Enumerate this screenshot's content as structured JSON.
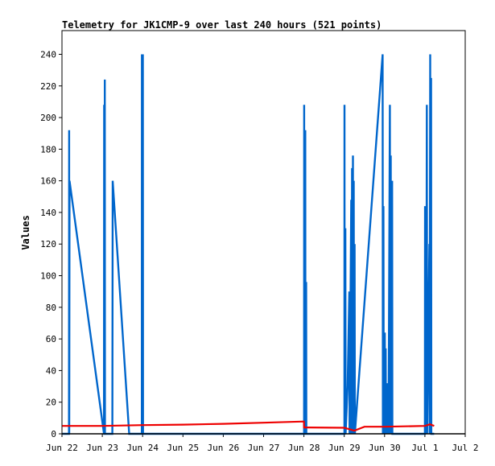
{
  "chart_data": {
    "type": "line",
    "title": "Telemetry for JK1CMP-9 over last 240 hours (521 points)",
    "ylabel": "Values",
    "xlabel": "",
    "ylim": [
      0,
      255
    ],
    "x_range": [
      "2024-06-22 00:00",
      "2024-07-02 00:00"
    ],
    "x_ticks": [
      "Jun 22",
      "Jun 23",
      "Jun 24",
      "Jun 25",
      "Jun 26",
      "Jun 27",
      "Jun 28",
      "Jun 29",
      "Jun 30",
      "Jul 1",
      "Jul 2"
    ],
    "y_ticks": [
      0,
      20,
      40,
      60,
      80,
      100,
      120,
      140,
      160,
      180,
      200,
      220,
      240
    ],
    "grid": false,
    "legend": "none",
    "series": [
      {
        "color": "#0066cc",
        "points": [
          [
            "2024-06-22 00:20",
            0
          ],
          [
            "2024-06-22 04:10",
            0
          ],
          [
            "2024-06-22 04:15",
            192
          ],
          [
            "2024-06-22 04:20",
            0
          ],
          [
            "2024-06-22 04:30",
            160
          ],
          [
            "2024-06-23 01:00",
            0
          ],
          [
            "2024-06-23 01:05",
            208
          ],
          [
            "2024-06-23 01:10",
            0
          ],
          [
            "2024-06-23 01:25",
            0
          ],
          [
            "2024-06-23 01:30",
            224
          ],
          [
            "2024-06-23 01:35",
            0
          ],
          [
            "2024-06-23 06:00",
            0
          ],
          [
            "2024-06-23 06:10",
            160
          ],
          [
            "2024-06-23 16:00",
            0
          ],
          [
            "2024-06-23 23:30",
            0
          ],
          [
            "2024-06-23 23:35",
            240
          ],
          [
            "2024-06-23 23:40",
            0
          ],
          [
            "2024-06-23 23:50",
            225
          ],
          [
            "2024-06-24 00:05",
            0
          ],
          [
            "2024-06-24 00:10",
            240
          ],
          [
            "2024-06-24 00:15",
            0
          ],
          [
            "2024-06-28 00:05",
            0
          ],
          [
            "2024-06-28 00:10",
            208
          ],
          [
            "2024-06-28 00:15",
            0
          ],
          [
            "2024-06-28 00:45",
            0
          ],
          [
            "2024-06-28 00:50",
            192
          ],
          [
            "2024-06-28 00:55",
            0
          ],
          [
            "2024-06-28 01:20",
            96
          ],
          [
            "2024-06-28 01:25",
            0
          ],
          [
            "2024-06-29 00:05",
            0
          ],
          [
            "2024-06-29 00:10",
            208
          ],
          [
            "2024-06-29 00:15",
            0
          ],
          [
            "2024-06-29 00:40",
            130
          ],
          [
            "2024-06-29 00:50",
            0
          ],
          [
            "2024-06-29 02:00",
            30
          ],
          [
            "2024-06-29 03:00",
            90
          ],
          [
            "2024-06-29 03:10",
            0
          ],
          [
            "2024-06-29 04:10",
            148
          ],
          [
            "2024-06-29 04:20",
            0
          ],
          [
            "2024-06-29 04:40",
            168
          ],
          [
            "2024-06-29 04:50",
            0
          ],
          [
            "2024-06-29 05:10",
            176
          ],
          [
            "2024-06-29 05:20",
            0
          ],
          [
            "2024-06-29 05:40",
            160
          ],
          [
            "2024-06-29 05:50",
            0
          ],
          [
            "2024-06-29 06:10",
            120
          ],
          [
            "2024-06-29 06:20",
            0
          ],
          [
            "2024-06-29 22:50",
            240
          ],
          [
            "2024-06-29 23:00",
            0
          ],
          [
            "2024-06-29 23:20",
            144
          ],
          [
            "2024-06-29 23:30",
            0
          ],
          [
            "2024-06-30 00:10",
            64
          ],
          [
            "2024-06-30 00:20",
            0
          ],
          [
            "2024-06-30 00:40",
            54
          ],
          [
            "2024-06-30 00:50",
            0
          ],
          [
            "2024-06-30 01:30",
            32
          ],
          [
            "2024-06-30 01:40",
            0
          ],
          [
            "2024-06-30 02:10",
            32
          ],
          [
            "2024-06-30 02:20",
            0
          ],
          [
            "2024-06-30 03:10",
            208
          ],
          [
            "2024-06-30 03:20",
            0
          ],
          [
            "2024-06-30 03:40",
            176
          ],
          [
            "2024-06-30 03:50",
            0
          ],
          [
            "2024-06-30 04:30",
            160
          ],
          [
            "2024-06-30 04:40",
            0
          ],
          [
            "2024-07-01 00:00",
            0
          ],
          [
            "2024-07-01 00:05",
            144
          ],
          [
            "2024-07-01 00:10",
            0
          ],
          [
            "2024-07-01 00:40",
            128
          ],
          [
            "2024-07-01 00:50",
            0
          ],
          [
            "2024-07-01 01:10",
            208
          ],
          [
            "2024-07-01 01:20",
            0
          ],
          [
            "2024-07-01 02:40",
            120
          ],
          [
            "2024-07-01 02:50",
            0
          ],
          [
            "2024-07-01 03:10",
            240
          ],
          [
            "2024-07-01 03:20",
            0
          ],
          [
            "2024-07-01 03:40",
            225
          ],
          [
            "2024-07-01 03:50",
            0
          ],
          [
            "2024-07-01 05:30",
            0
          ]
        ]
      },
      {
        "color": "#ee0000",
        "points": [
          [
            "2024-06-22 00:10",
            5
          ],
          [
            "2024-06-23 00:00",
            5
          ],
          [
            "2024-06-24 00:00",
            5.5
          ],
          [
            "2024-06-25 00:00",
            5.8
          ],
          [
            "2024-06-26 00:00",
            6.3
          ],
          [
            "2024-06-27 00:00",
            7
          ],
          [
            "2024-06-28 00:00",
            7.8
          ],
          [
            "2024-06-28 00:05",
            4
          ],
          [
            "2024-06-29 00:00",
            3.8
          ],
          [
            "2024-06-29 06:00",
            2
          ],
          [
            "2024-06-29 12:00",
            4.5
          ],
          [
            "2024-06-30 00:00",
            4.5
          ],
          [
            "2024-07-01 00:00",
            5
          ],
          [
            "2024-07-01 03:00",
            6
          ],
          [
            "2024-07-01 05:30",
            5
          ]
        ]
      }
    ]
  }
}
